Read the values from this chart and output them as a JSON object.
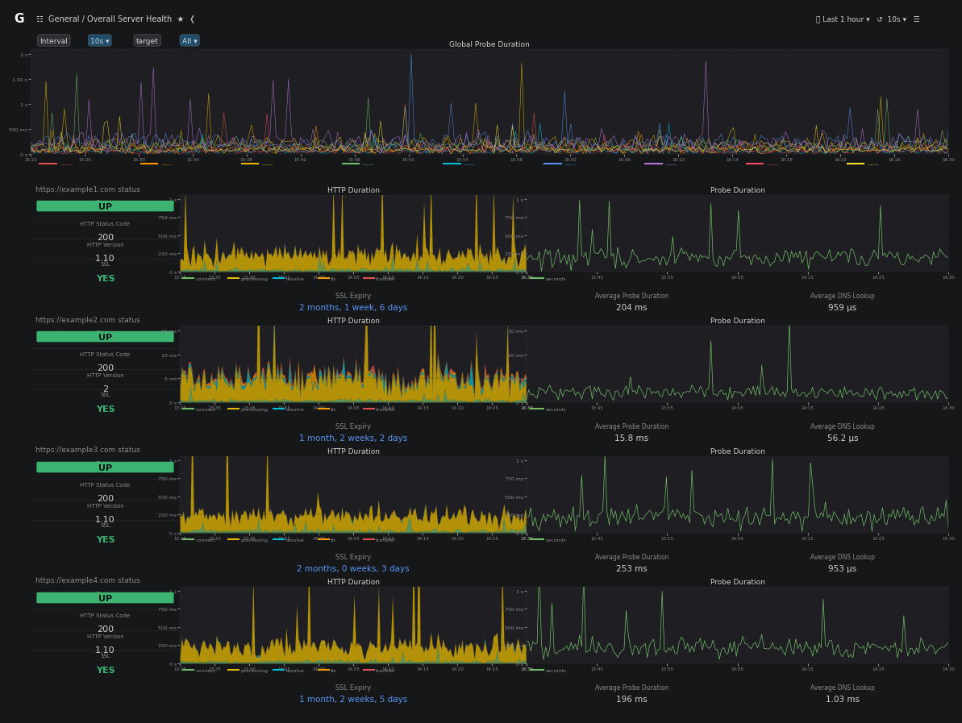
{
  "bg_color": "#161719",
  "panel_bg": "#1f1f23",
  "panel_border": "#2d2d32",
  "text_color": "#d0d0d0",
  "text_dim": "#8a8a8a",
  "green": "#3cb371",
  "green_bright": "#73bf69",
  "yellow": "#e6b800",
  "orange": "#ff9900",
  "red": "#e05252",
  "cyan": "#00bcd4",
  "blue": "#5794f2",
  "title": "General / Overall Server Health",
  "top_panel_title": "Global Probe Duration",
  "rows": [
    {
      "title": "https://example1.com status",
      "status": "UP",
      "http_code": "200",
      "http_version": "1.10",
      "ssl": "YES",
      "ssl_expiry": "2 months, 1 week, 6 days",
      "avg_probe": "204 ms",
      "avg_dns": "959 μs"
    },
    {
      "title": "https://example2.com status",
      "status": "UP",
      "http_code": "200",
      "http_version": "2",
      "ssl": "YES",
      "ssl_expiry": "1 month, 2 weeks, 2 days",
      "avg_probe": "15.8 ms",
      "avg_dns": "56.2 μs"
    },
    {
      "title": "https://example3.com status",
      "status": "UP",
      "http_code": "200",
      "http_version": "1.10",
      "ssl": "YES",
      "ssl_expiry": "2 months, 0 weeks, 3 days",
      "avg_probe": "253 ms",
      "avg_dns": "953 μs"
    },
    {
      "title": "https://example4.com status",
      "status": "UP",
      "http_code": "200",
      "http_version": "1.10",
      "ssl": "YES",
      "ssl_expiry": "1 month, 2 weeks, 5 days",
      "avg_probe": "196 ms",
      "avg_dns": "1.03 ms"
    }
  ],
  "time_labels_global": [
    "15:22",
    "15:26",
    "15:30",
    "15:34",
    "15:38",
    "15:42",
    "15:46",
    "15:50",
    "15:54",
    "15:58",
    "16:02",
    "16:06",
    "16:10",
    "16:14",
    "16:18",
    "16:22",
    "16:26",
    "16:30"
  ],
  "time_labels_http": [
    "13:25",
    "13:35",
    "13:45",
    "13:55",
    "14:00",
    "14:05",
    "14:10",
    "14:15",
    "14:20",
    "14:25",
    "14:30"
  ],
  "time_labels_probe": [
    "13:35",
    "13:45",
    "13:55",
    "14:05",
    "14:15",
    "14:25",
    "14:30"
  ],
  "legend_http": [
    "connect",
    "processing",
    "resolve",
    "tls",
    "transfer"
  ],
  "legend_http_colors": [
    "#73bf69",
    "#e6b800",
    "#00bcd4",
    "#ff9900",
    "#e05252"
  ],
  "legend_probe_color": "#73bf69",
  "colors_glob": [
    "#e05252",
    "#ff9900",
    "#e6b800",
    "#73bf69",
    "#00bcd4",
    "#5794f2",
    "#b877d9",
    "#f2495c",
    "#fade2a"
  ]
}
